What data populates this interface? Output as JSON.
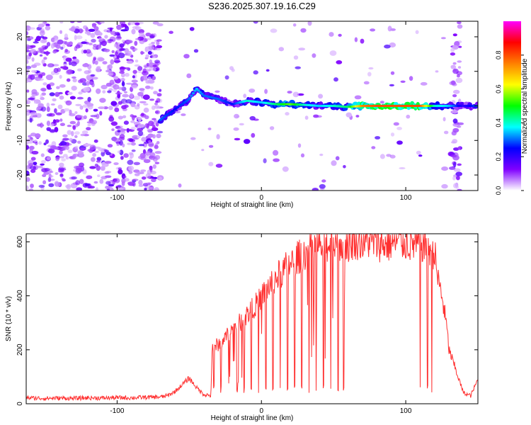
{
  "title": "S236.2025.307.19.16.C29",
  "chart_data": [
    {
      "type": "heatmap",
      "xlabel": "Height of straight line (km)",
      "ylabel": "Frequency (Hz)",
      "xlim": [
        -163,
        150
      ],
      "ylim": [
        -24.5,
        24.5
      ],
      "xticks": [
        -100,
        0,
        100
      ],
      "xtick_labels": [
        "-100",
        "0",
        "100"
      ],
      "yticks": [
        -20,
        -10,
        0,
        10,
        20
      ],
      "ytick_labels": [
        "-20",
        "-10",
        "0",
        "10",
        "20"
      ],
      "colorbar": {
        "label": "Normalized spectral amplitude",
        "range": [
          0.0,
          1.0
        ],
        "ticks": [
          0.0,
          0.2,
          0.4,
          0.6,
          0.8
        ],
        "tick_labels": [
          "0.0",
          "0.2",
          "0.4",
          "0.6",
          "0.8"
        ],
        "colors": [
          "#ffffff",
          "#8000ff",
          "#0000ff",
          "#00ffff",
          "#00ff00",
          "#ffff00",
          "#ff8000",
          "#ff0000",
          "#ff00ff"
        ]
      },
      "noise_region_x": [
        -163,
        -70
      ],
      "right_noise_region_x": [
        130,
        150
      ],
      "signal_track": {
        "x": [
          -70,
          -60,
          -50,
          -45,
          -40,
          -30,
          -20,
          -10,
          0,
          10,
          20,
          30,
          40,
          50,
          60,
          70,
          80,
          90,
          100,
          110,
          120,
          130,
          140,
          150
        ],
        "freq": [
          -4,
          -1,
          2,
          5,
          3,
          2,
          0.5,
          1.5,
          1,
          0.5,
          0.5,
          0.3,
          0,
          0,
          -0.3,
          0,
          0,
          0,
          0,
          0,
          0,
          0,
          0,
          0
        ],
        "amplitude": [
          0.3,
          0.25,
          0.3,
          0.35,
          0.3,
          0.3,
          0.25,
          0.4,
          0.35,
          0.45,
          0.55,
          0.4,
          0.35,
          0.4,
          0.45,
          0.75,
          0.8,
          0.8,
          0.8,
          0.8,
          0.4,
          0.35,
          0.2,
          0.3
        ]
      }
    },
    {
      "type": "line",
      "xlabel": "Height of straight line (km)",
      "ylabel": "SNR (10 * v/v)",
      "xlim": [
        -163,
        150
      ],
      "ylim": [
        0,
        630
      ],
      "xticks": [
        -100,
        0,
        100
      ],
      "xtick_labels": [
        "-100",
        "0",
        "100"
      ],
      "yticks": [
        0,
        200,
        400,
        600
      ],
      "ytick_labels": [
        "0",
        "200",
        "400",
        "600"
      ],
      "color": "#ff3030",
      "series": [
        {
          "name": "SNR",
          "x": [
            -163,
            -150,
            -140,
            -130,
            -120,
            -110,
            -100,
            -90,
            -80,
            -70,
            -65,
            -60,
            -55,
            -50,
            -45,
            -40,
            -35,
            -34,
            -30,
            -25,
            -20,
            -15,
            -10,
            -5,
            0,
            5,
            10,
            15,
            20,
            25,
            30,
            35,
            40,
            45,
            50,
            55,
            57,
            60,
            65,
            70,
            75,
            80,
            85,
            90,
            95,
            100,
            105,
            110,
            115,
            120,
            122,
            125,
            128,
            130,
            135,
            140,
            145,
            150
          ],
          "y": [
            22,
            20,
            21,
            20,
            22,
            21,
            23,
            22,
            24,
            25,
            30,
            45,
            70,
            95,
            60,
            35,
            30,
            210,
            220,
            245,
            275,
            300,
            330,
            360,
            395,
            435,
            465,
            495,
            520,
            540,
            560,
            575,
            585,
            590,
            595,
            598,
            600,
            590,
            605,
            600,
            605,
            598,
            590,
            595,
            600,
            598,
            590,
            595,
            585,
            560,
            470,
            400,
            300,
            200,
            120,
            40,
            30,
            90
          ]
        }
      ],
      "dropouts_x": [
        -33,
        -28,
        -22,
        -17,
        -12,
        -7,
        -2,
        3,
        8,
        13,
        18,
        23,
        28,
        33,
        38,
        43,
        48,
        53,
        57,
        110,
        115,
        118
      ]
    }
  ]
}
